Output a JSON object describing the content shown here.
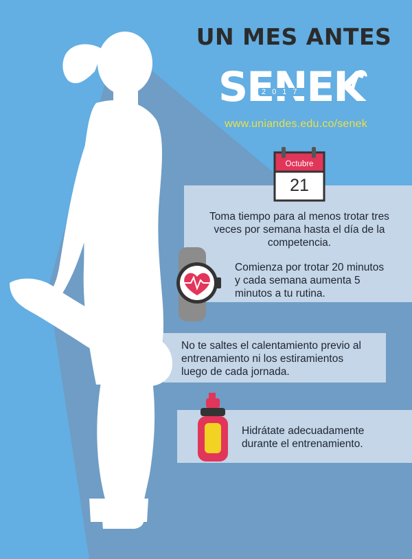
{
  "title": "UN MES ANTES",
  "logo": {
    "name": "SENEK",
    "year": "2017"
  },
  "url": "www.uniandes.edu.co/senek",
  "calendar": {
    "month": "Octubre",
    "day": "21"
  },
  "tips": [
    {
      "lines": [
        "Toma tiempo para al menos trotar tres",
        "veces por semana hasta el día de la",
        "competencia."
      ]
    },
    {
      "lines": [
        "Comienza por trotar 20 minutos",
        "y cada semana aumenta 5",
        "minutos a tu rutina."
      ]
    },
    {
      "lines": [
        "No te saltes el calentamiento previo al",
        "entrenamiento ni los estiramientos",
        "luego de cada jornada."
      ]
    },
    {
      "lines": [
        "Hidrátate adecuadamente",
        "durante el entrenamiento."
      ]
    }
  ],
  "colors": {
    "background": "#63aee2",
    "shadow": "#6e9cc4",
    "panel": "#c4d6e8",
    "accent_red": "#e2355a",
    "accent_yellow": "#e8e04a",
    "watch_gray": "#8c8c8c",
    "bottle_yellow": "#f2d324"
  },
  "icons": [
    "calendar-icon",
    "watch-heart-icon",
    "water-bottle-icon",
    "horse-logo-icon"
  ]
}
